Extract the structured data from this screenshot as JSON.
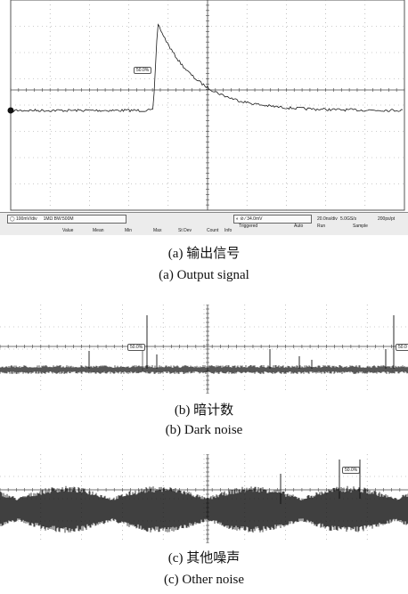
{
  "panel_a": {
    "cursor_label": "50.0%",
    "scale": "100mV/div",
    "impedance": "1MΩ",
    "bandwidth": "BW:500M",
    "trigger_level": "34.0mV",
    "trigger_state": "Triggered",
    "trigger_mode": "Auto",
    "timebase": "20.0ns/div",
    "sample_rate": "5.0GS/s",
    "resolution": "200ps/pt",
    "run_state": "Run",
    "acq_mode": "Sample",
    "measure_headers": [
      "Value",
      "Mean",
      "Min",
      "Max",
      "St Dev",
      "Count",
      "Info"
    ]
  },
  "panel_b": {
    "cursor_label": "50.0%",
    "cursor_label_right": "50.0"
  },
  "panel_c": {
    "cursor_label": "50.0%"
  },
  "captions": {
    "a_cn": "(a) 输出信号",
    "a_en": "(a) Output signal",
    "b_cn": "(b) 暗计数",
    "b_en": "(b) Dark noise",
    "c_cn": "(c) 其他噪声",
    "c_en": "(c) Other noise"
  },
  "colors": {
    "trace": "#1a1a1a",
    "grid": "#9a9a9a",
    "status_bg": "#ececec"
  }
}
